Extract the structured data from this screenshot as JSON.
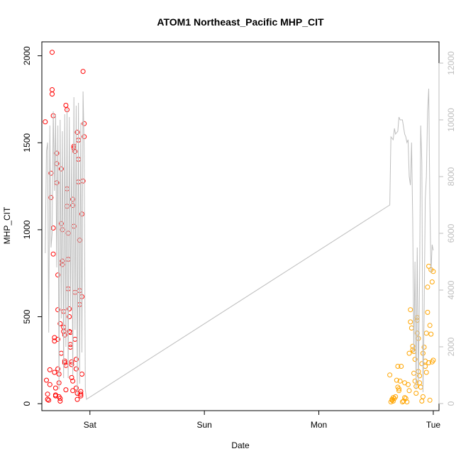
{
  "chart_data": {
    "type": "scatter",
    "title": "ATOM1 Northeast_Pacific MHP_CIT",
    "xlabel": "Date",
    "ylabel": "MHP_CIT",
    "x_ticks": [
      {
        "label": "Sat",
        "value": 1.0
      },
      {
        "label": "Sun",
        "value": 2.0
      },
      {
        "label": "Mon",
        "value": 3.0
      },
      {
        "label": "Tue",
        "value": 4.0
      }
    ],
    "xlim": [
      0.58,
      4.05
    ],
    "ylim": [
      -40,
      2080
    ],
    "y_ticks": [
      0,
      500,
      1000,
      1500,
      2000
    ],
    "y2lim": [
      -250,
      12750
    ],
    "y2_ticks": [
      0,
      2000,
      4000,
      6000,
      8000,
      10000,
      12000
    ],
    "series": [
      {
        "color": "#ff0000",
        "points": [
          [
            0.61,
            1620
          ],
          [
            0.62,
            135
          ],
          [
            0.63,
            55
          ],
          [
            0.63,
            25
          ],
          [
            0.64,
            20
          ],
          [
            0.65,
            195
          ],
          [
            0.65,
            110
          ],
          [
            0.66,
            1185
          ],
          [
            0.66,
            1325
          ],
          [
            0.67,
            2020
          ],
          [
            0.67,
            1805
          ],
          [
            0.67,
            1780
          ],
          [
            0.68,
            1655
          ],
          [
            0.68,
            1010
          ],
          [
            0.68,
            860
          ],
          [
            0.69,
            380
          ],
          [
            0.69,
            360
          ],
          [
            0.69,
            180
          ],
          [
            0.7,
            90
          ],
          [
            0.7,
            45
          ],
          [
            0.7,
            50
          ],
          [
            0.71,
            1440
          ],
          [
            0.71,
            1380
          ],
          [
            0.71,
            1270
          ],
          [
            0.72,
            740
          ],
          [
            0.72,
            540
          ],
          [
            0.72,
            370
          ],
          [
            0.72,
            200
          ],
          [
            0.73,
            170
          ],
          [
            0.73,
            120
          ],
          [
            0.73,
            40
          ],
          [
            0.74,
            30
          ],
          [
            0.74,
            15
          ],
          [
            0.74,
            460
          ],
          [
            0.75,
            290
          ],
          [
            0.75,
            1350
          ],
          [
            0.75,
            1035
          ],
          [
            0.76,
            1000
          ],
          [
            0.76,
            820
          ],
          [
            0.76,
            800
          ],
          [
            0.77,
            530
          ],
          [
            0.77,
            440
          ],
          [
            0.77,
            415
          ],
          [
            0.78,
            395
          ],
          [
            0.78,
            245
          ],
          [
            0.78,
            235
          ],
          [
            0.79,
            220
          ],
          [
            0.79,
            80
          ],
          [
            0.79,
            1715
          ],
          [
            0.8,
            1690
          ],
          [
            0.8,
            1235
          ],
          [
            0.8,
            1135
          ],
          [
            0.81,
            980
          ],
          [
            0.81,
            830
          ],
          [
            0.81,
            660
          ],
          [
            0.82,
            545
          ],
          [
            0.82,
            500
          ],
          [
            0.82,
            415
          ],
          [
            0.83,
            410
          ],
          [
            0.83,
            340
          ],
          [
            0.83,
            325
          ],
          [
            0.84,
            240
          ],
          [
            0.84,
            225
          ],
          [
            0.84,
            150
          ],
          [
            0.85,
            130
          ],
          [
            0.85,
            75
          ],
          [
            0.85,
            1175
          ],
          [
            0.85,
            1140
          ],
          [
            0.86,
            1020
          ],
          [
            0.86,
            1480
          ],
          [
            0.86,
            1470
          ],
          [
            0.87,
            1450
          ],
          [
            0.87,
            640
          ],
          [
            0.87,
            370
          ],
          [
            0.88,
            255
          ],
          [
            0.88,
            200
          ],
          [
            0.88,
            90
          ],
          [
            0.89,
            60
          ],
          [
            0.89,
            25
          ],
          [
            0.89,
            1560
          ],
          [
            0.9,
            1515
          ],
          [
            0.9,
            1405
          ],
          [
            0.9,
            1275
          ],
          [
            0.91,
            940
          ],
          [
            0.91,
            570
          ],
          [
            0.91,
            650
          ],
          [
            0.92,
            70
          ],
          [
            0.92,
            55
          ],
          [
            0.92,
            45
          ],
          [
            0.93,
            170
          ],
          [
            0.93,
            1090
          ],
          [
            0.93,
            615
          ],
          [
            0.94,
            1280
          ],
          [
            0.94,
            1910
          ],
          [
            0.95,
            1610
          ],
          [
            0.95,
            1535
          ]
        ]
      },
      {
        "color": "#ffa500",
        "points": [
          [
            3.62,
            165
          ],
          [
            3.63,
            10
          ],
          [
            3.64,
            20
          ],
          [
            3.64,
            25
          ],
          [
            3.65,
            35
          ],
          [
            3.65,
            15
          ],
          [
            3.66,
            30
          ],
          [
            3.67,
            40
          ],
          [
            3.68,
            135
          ],
          [
            3.69,
            95
          ],
          [
            3.69,
            215
          ],
          [
            3.7,
            85
          ],
          [
            3.7,
            75
          ],
          [
            3.71,
            130
          ],
          [
            3.72,
            215
          ],
          [
            3.73,
            10
          ],
          [
            3.74,
            15
          ],
          [
            3.75,
            120
          ],
          [
            3.75,
            35
          ],
          [
            3.76,
            30
          ],
          [
            3.77,
            10
          ],
          [
            3.78,
            110
          ],
          [
            3.79,
            75
          ],
          [
            3.79,
            290
          ],
          [
            3.8,
            540
          ],
          [
            3.8,
            470
          ],
          [
            3.81,
            435
          ],
          [
            3.82,
            310
          ],
          [
            3.82,
            330
          ],
          [
            3.83,
            300
          ],
          [
            3.83,
            175
          ],
          [
            3.84,
            255
          ],
          [
            3.84,
            130
          ],
          [
            3.85,
            100
          ],
          [
            3.85,
            60
          ],
          [
            3.86,
            495
          ],
          [
            3.86,
            480
          ],
          [
            3.86,
            405
          ],
          [
            3.87,
            375
          ],
          [
            3.87,
            185
          ],
          [
            3.88,
            160
          ],
          [
            3.88,
            120
          ],
          [
            3.89,
            95
          ],
          [
            3.9,
            230
          ],
          [
            3.9,
            15
          ],
          [
            3.91,
            40
          ],
          [
            3.91,
            290
          ],
          [
            3.92,
            325
          ],
          [
            3.93,
            245
          ],
          [
            3.93,
            215
          ],
          [
            3.94,
            180
          ],
          [
            3.94,
            405
          ],
          [
            3.95,
            670
          ],
          [
            3.95,
            525
          ],
          [
            3.96,
            790
          ],
          [
            3.96,
            235
          ],
          [
            3.97,
            20
          ],
          [
            3.97,
            450
          ],
          [
            3.98,
            400
          ],
          [
            3.98,
            770
          ],
          [
            3.99,
            700
          ],
          [
            3.99,
            240
          ],
          [
            4.0,
            250
          ],
          [
            4.0,
            760
          ]
        ]
      },
      {
        "color": "#bebebe",
        "axis": "right",
        "points": [
          [
            0.61,
            5300
          ],
          [
            0.62,
            8900
          ],
          [
            0.63,
            9200
          ],
          [
            0.64,
            2500
          ],
          [
            0.65,
            9800
          ],
          [
            0.66,
            5500
          ],
          [
            0.67,
            6000
          ],
          [
            0.68,
            10300
          ],
          [
            0.69,
            7500
          ],
          [
            0.7,
            10200
          ],
          [
            0.71,
            4800
          ],
          [
            0.72,
            9800
          ],
          [
            0.73,
            500
          ],
          [
            0.74,
            10000
          ],
          [
            0.75,
            3000
          ],
          [
            0.76,
            9600
          ],
          [
            0.77,
            900
          ],
          [
            0.78,
            10200
          ],
          [
            0.79,
            2000
          ],
          [
            0.8,
            10400
          ],
          [
            0.81,
            900
          ],
          [
            0.82,
            10100
          ],
          [
            0.83,
            3300
          ],
          [
            0.84,
            9000
          ],
          [
            0.85,
            1000
          ],
          [
            0.86,
            10800
          ],
          [
            0.87,
            2600
          ],
          [
            0.88,
            10500
          ],
          [
            0.89,
            300
          ],
          [
            0.9,
            10600
          ],
          [
            0.91,
            700
          ],
          [
            0.92,
            9900
          ],
          [
            0.93,
            1800
          ],
          [
            0.94,
            11000
          ],
          [
            0.95,
            9000
          ],
          [
            0.96,
            500
          ],
          [
            0.97,
            150
          ],
          [
            3.62,
            7000
          ],
          [
            3.63,
            9400
          ],
          [
            3.65,
            9300
          ],
          [
            3.66,
            9700
          ],
          [
            3.67,
            9500
          ],
          [
            3.69,
            9600
          ],
          [
            3.7,
            10100
          ],
          [
            3.71,
            10000
          ],
          [
            3.73,
            10000
          ],
          [
            3.75,
            9500
          ],
          [
            3.76,
            9400
          ],
          [
            3.77,
            9200
          ],
          [
            3.78,
            9300
          ],
          [
            3.79,
            8000
          ],
          [
            3.8,
            7700
          ],
          [
            3.81,
            9200
          ],
          [
            3.82,
            6500
          ],
          [
            3.83,
            1800
          ],
          [
            3.84,
            5000
          ],
          [
            3.85,
            500
          ],
          [
            3.86,
            5500
          ],
          [
            3.87,
            700
          ],
          [
            3.88,
            4300
          ],
          [
            3.89,
            9800
          ],
          [
            3.9,
            8500
          ],
          [
            3.91,
            400
          ],
          [
            3.92,
            3000
          ],
          [
            3.93,
            7200
          ],
          [
            3.94,
            8000
          ],
          [
            3.95,
            10300
          ],
          [
            3.96,
            11100
          ],
          [
            3.97,
            7100
          ],
          [
            3.98,
            4600
          ],
          [
            3.99,
            5600
          ],
          [
            4.0,
            5400
          ]
        ]
      }
    ]
  }
}
